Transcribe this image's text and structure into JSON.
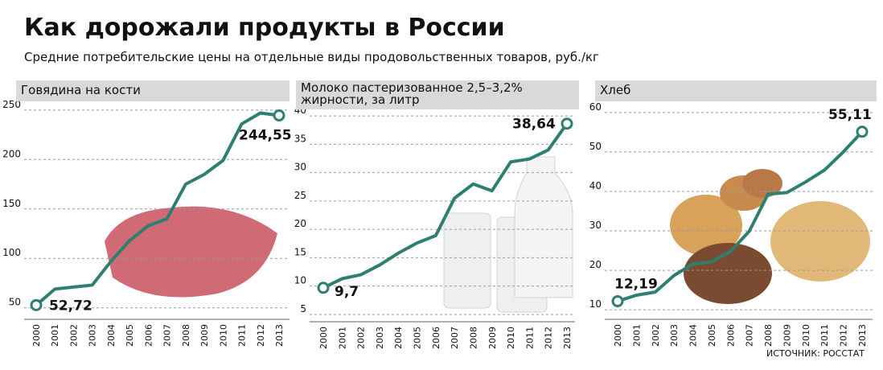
{
  "title": "Как дорожали продукты в России",
  "subtitle": "Средние потребительские цены на отдельные виды продовольственных товаров, руб./кг",
  "source": "ИСТОЧНИК: РОССТАТ",
  "chart_data": [
    {
      "type": "line",
      "title": "Говядина на кости",
      "categories": [
        "2000",
        "2001",
        "2002",
        "2003",
        "2004",
        "2005",
        "2006",
        "2007",
        "2008",
        "2009",
        "2010",
        "2011",
        "2012",
        "2013"
      ],
      "series": [
        {
          "color": "#2f7f70",
          "values": [
            52.72,
            69,
            71,
            73,
            97,
            118,
            133,
            140,
            175,
            185,
            199,
            236,
            247,
            244.55
          ],
          "value_labels": [
            "52,72",
            null,
            null,
            null,
            null,
            null,
            null,
            null,
            null,
            null,
            null,
            null,
            null,
            "244,55"
          ]
        }
      ],
      "ylim": [
        40,
        258
      ],
      "yticks": [
        50,
        100,
        150,
        200,
        250
      ],
      "grid": true
    },
    {
      "type": "line",
      "title": "Молоко пастеризованное 2,5–3,2% жирности, за литр",
      "categories": [
        "2000",
        "2001",
        "2002",
        "2003",
        "2004",
        "2005",
        "2006",
        "2007",
        "2008",
        "2009",
        "2010",
        "2011",
        "2012",
        "2013"
      ],
      "series": [
        {
          "color": "#2f7f70",
          "values": [
            9.7,
            11.3,
            12,
            13.7,
            15.8,
            17.6,
            18.9,
            25.5,
            28,
            26.8,
            31.9,
            32.4,
            34,
            38.64
          ],
          "value_labels": [
            "9,7",
            null,
            null,
            null,
            null,
            null,
            null,
            null,
            null,
            null,
            null,
            null,
            null,
            "38,64"
          ]
        }
      ],
      "ylim": [
        4,
        42
      ],
      "yticks": [
        5,
        10,
        15,
        20,
        25,
        30,
        35,
        40
      ],
      "grid": true
    },
    {
      "type": "line",
      "title": "Хлеб",
      "categories": [
        "2000",
        "2001",
        "2002",
        "2003",
        "2004",
        "2005",
        "2006",
        "2007",
        "2008",
        "2009",
        "2010",
        "2011",
        "2012",
        "2013"
      ],
      "series": [
        {
          "color": "#2f7f70",
          "values": [
            12.19,
            13.7,
            14.5,
            18.7,
            21.6,
            22.2,
            24.8,
            29.9,
            39.3,
            39.7,
            42.4,
            45.4,
            50,
            55.11
          ],
          "value_labels": [
            "12,19",
            null,
            null,
            null,
            null,
            null,
            null,
            null,
            null,
            null,
            null,
            null,
            null,
            "55,11"
          ]
        }
      ],
      "ylim": [
        8,
        62
      ],
      "yticks": [
        10,
        20,
        30,
        40,
        50,
        60
      ],
      "grid": true
    }
  ]
}
